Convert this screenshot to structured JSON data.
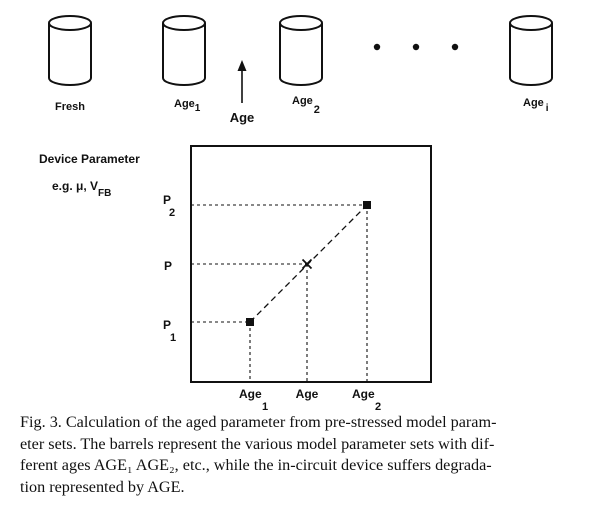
{
  "barrels": {
    "fresh": "Fresh",
    "age1": {
      "base": "Age",
      "sub": "1"
    },
    "age2": {
      "base": "Age",
      "sub": "2"
    },
    "agei": {
      "base": "Age",
      "sub": "i"
    }
  },
  "arrow_label": "Age",
  "param": {
    "title": "Device Parameter",
    "example_prefix": "e.g. μ, V",
    "example_sub": "FB"
  },
  "plot": {
    "y_ticks": {
      "p2": {
        "base": "P",
        "sub": "2"
      },
      "p": {
        "base": "P"
      },
      "p1": {
        "base": "P",
        "sub": "1"
      }
    },
    "x_ticks": {
      "age1": {
        "base": "Age",
        "sub": "1"
      },
      "age": {
        "base": "Age"
      },
      "age2": {
        "base": "Age",
        "sub": "2"
      }
    }
  },
  "caption": {
    "line1": "Fig. 3.  Calculation of the aged parameter from pre-stressed model param-",
    "line2": "eter sets. The barrels represent the various model parameter sets with dif-",
    "line3": "ferent ages AGE₁ AGE₂, etc., while the in-circuit device suffers degrada-",
    "line4": "tion represented by AGE."
  }
}
